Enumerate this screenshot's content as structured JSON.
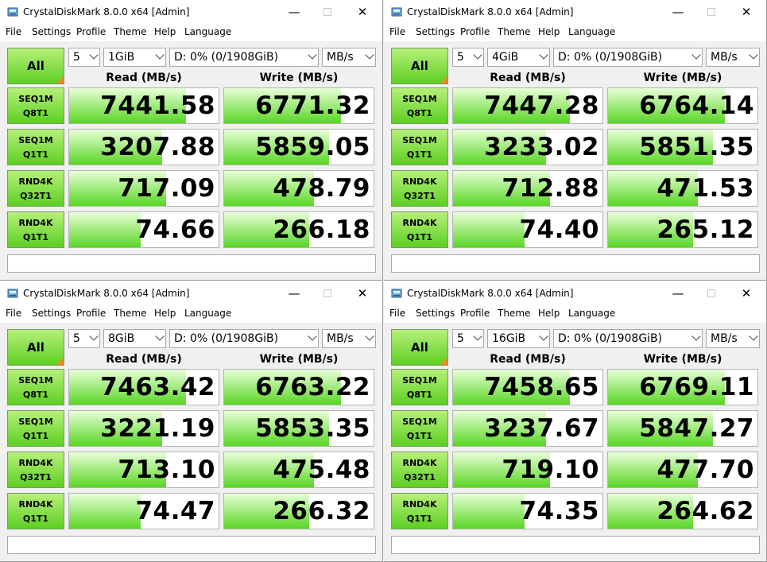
{
  "app": {
    "title": "CrystalDiskMark 8.0.0 x64 [Admin]",
    "menu": [
      "File",
      "Settings",
      "Profile",
      "Theme",
      "Help",
      "Language"
    ],
    "all_label": "All",
    "read_header": "Read (MB/s)",
    "write_header": "Write (MB/s)",
    "drive": "D: 0% (0/1908GiB)",
    "unit": "MB/s",
    "count": "5",
    "tests": [
      {
        "l1": "SEQ1M",
        "l2": "Q8T1"
      },
      {
        "l1": "SEQ1M",
        "l2": "Q1T1"
      },
      {
        "l1": "RND4K",
        "l2": "Q32T1"
      },
      {
        "l1": "RND4K",
        "l2": "Q1T1"
      }
    ],
    "icons": [
      "app-icon",
      "minimize-icon",
      "maximize-icon",
      "close-icon",
      "chevron-down-icon"
    ],
    "colors": {
      "accent_green": "#5dcf22",
      "corner_orange": "#f08a20"
    }
  },
  "windows": [
    {
      "size": "1GiB",
      "results": [
        {
          "read": "7441.58",
          "write": "6771.32",
          "read_fill": 0.78,
          "write_fill": 0.78
        },
        {
          "read": "3207.88",
          "write": "5859.05",
          "read_fill": 0.62,
          "write_fill": 0.7
        },
        {
          "read": "717.09",
          "write": "478.79",
          "read_fill": 0.65,
          "write_fill": 0.6
        },
        {
          "read": "74.66",
          "write": "266.18",
          "read_fill": 0.48,
          "write_fill": 0.57
        }
      ]
    },
    {
      "size": "4GiB",
      "results": [
        {
          "read": "7447.28",
          "write": "6764.14",
          "read_fill": 0.78,
          "write_fill": 0.78
        },
        {
          "read": "3233.02",
          "write": "5851.35",
          "read_fill": 0.62,
          "write_fill": 0.7
        },
        {
          "read": "712.88",
          "write": "471.53",
          "read_fill": 0.65,
          "write_fill": 0.6
        },
        {
          "read": "74.40",
          "write": "265.12",
          "read_fill": 0.48,
          "write_fill": 0.57
        }
      ]
    },
    {
      "size": "8GiB",
      "results": [
        {
          "read": "7463.42",
          "write": "6763.22",
          "read_fill": 0.78,
          "write_fill": 0.78
        },
        {
          "read": "3221.19",
          "write": "5853.35",
          "read_fill": 0.62,
          "write_fill": 0.7
        },
        {
          "read": "713.10",
          "write": "475.48",
          "read_fill": 0.65,
          "write_fill": 0.6
        },
        {
          "read": "74.47",
          "write": "266.32",
          "read_fill": 0.48,
          "write_fill": 0.57
        }
      ]
    },
    {
      "size": "16GiB",
      "results": [
        {
          "read": "7458.65",
          "write": "6769.11",
          "read_fill": 0.78,
          "write_fill": 0.78
        },
        {
          "read": "3237.67",
          "write": "5847.27",
          "read_fill": 0.62,
          "write_fill": 0.7
        },
        {
          "read": "719.10",
          "write": "477.70",
          "read_fill": 0.65,
          "write_fill": 0.6
        },
        {
          "read": "74.35",
          "write": "264.62",
          "read_fill": 0.48,
          "write_fill": 0.57
        }
      ]
    }
  ]
}
